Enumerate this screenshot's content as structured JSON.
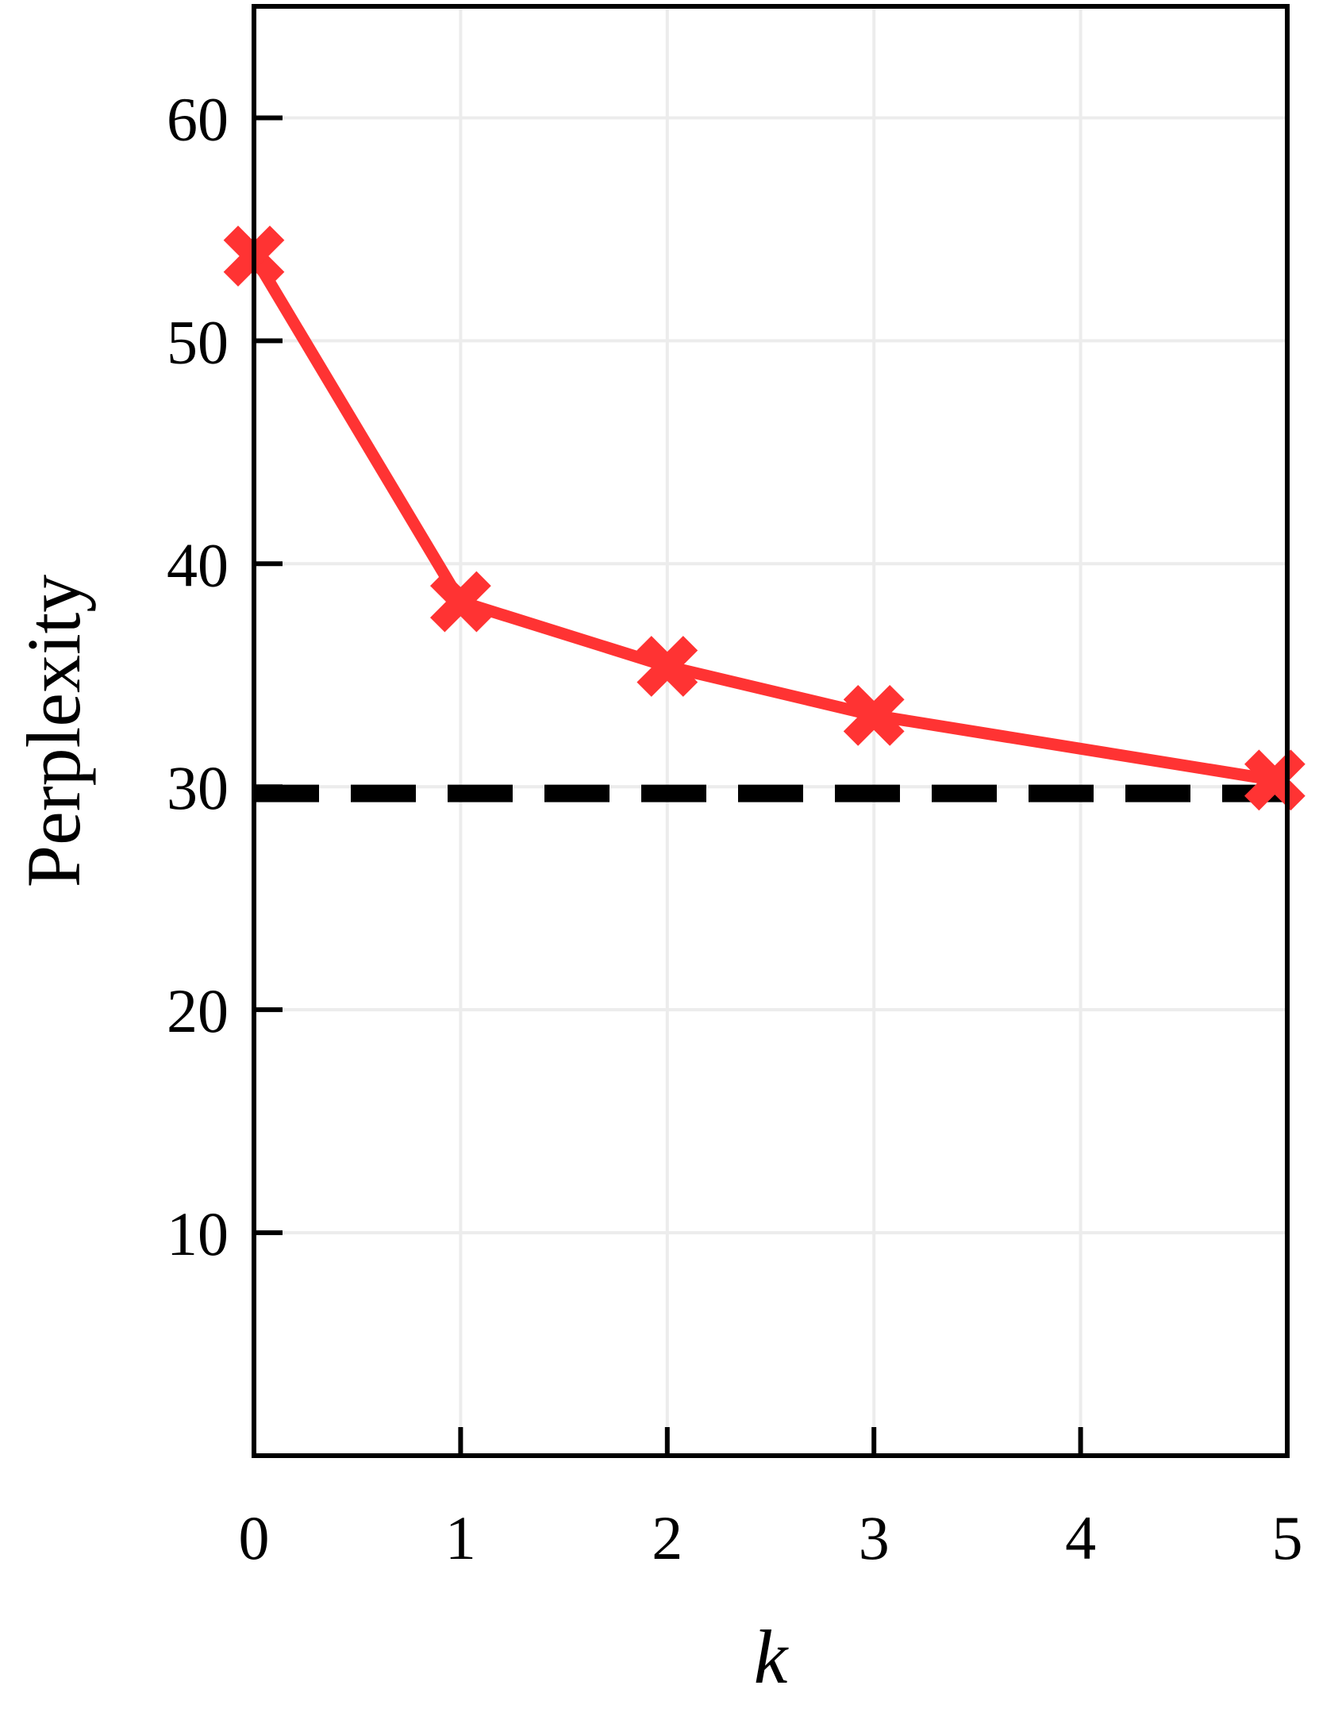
{
  "chart_data": {
    "type": "line",
    "xlabel": "k",
    "ylabel": "Perplexity",
    "xlim": [
      0,
      5
    ],
    "ylim": [
      0,
      65
    ],
    "xticks": [
      0,
      1,
      2,
      3,
      4,
      5
    ],
    "yticks": [
      10,
      20,
      30,
      40,
      50,
      60
    ],
    "x_tick_labels": [
      "0",
      "1",
      "2",
      "3",
      "4",
      "5"
    ],
    "y_tick_labels": [
      "10",
      "20",
      "30",
      "40",
      "50",
      "60"
    ],
    "grid": true,
    "series": [
      {
        "x": [
          0,
          1,
          2,
          3,
          4.94
        ],
        "values": [
          53.8,
          38.3,
          35.4,
          33.2,
          30.3
        ],
        "color": "#ff3333",
        "marker": "x"
      }
    ],
    "reference_lines": [
      {
        "orientation": "horizontal",
        "y": 29.7,
        "style": "dashed",
        "color": "#000000"
      }
    ]
  }
}
